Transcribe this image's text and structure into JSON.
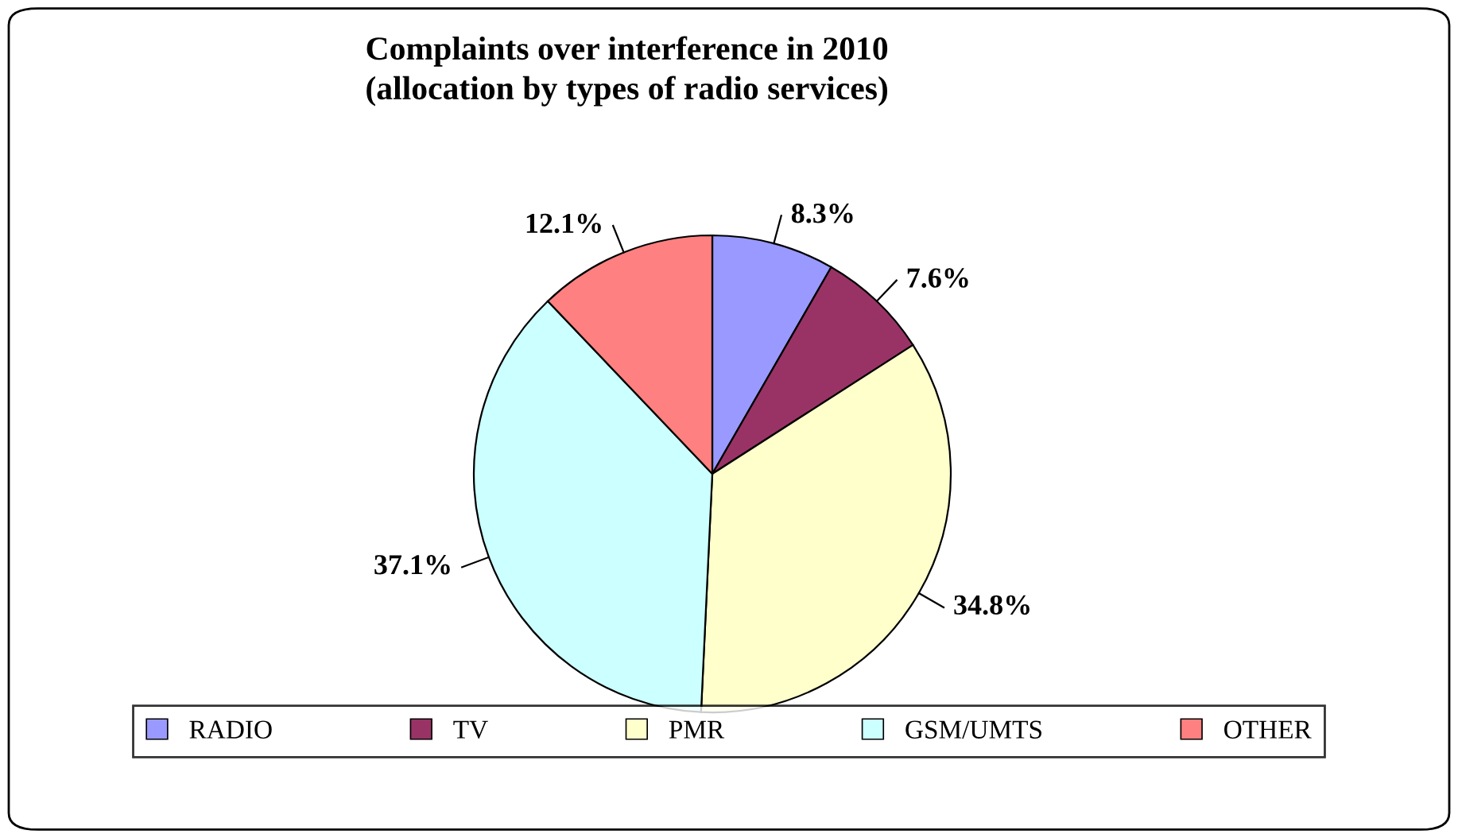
{
  "chart_data": {
    "type": "pie",
    "title": "Complaints over interference in 2010\n(allocation by types of radio services)",
    "categories": [
      "RADIO",
      "TV",
      "PMR",
      "GSM/UMTS",
      "OTHER"
    ],
    "values": [
      8.3,
      7.6,
      34.8,
      37.1,
      12.1
    ],
    "value_labels": [
      "8.3%",
      "7.6%",
      "34.8%",
      "37.1%",
      "12.1%"
    ],
    "colors": [
      "#9999ff",
      "#993366",
      "#ffffcc",
      "#ccffff",
      "#ff8080"
    ],
    "legend": "bottom"
  }
}
